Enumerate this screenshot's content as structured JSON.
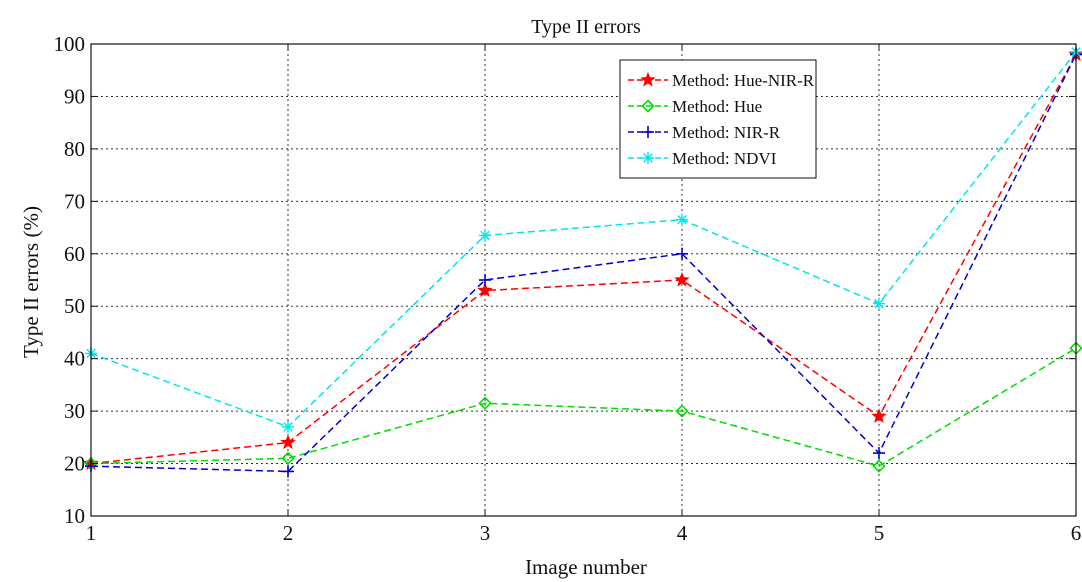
{
  "chart_data": {
    "type": "line",
    "title": "Type II errors",
    "xlabel": "Image number",
    "ylabel": "Type II errors (%)",
    "x": [
      1,
      2,
      3,
      4,
      5,
      6
    ],
    "xlim": [
      1,
      6
    ],
    "ylim": [
      10,
      100
    ],
    "xticks": [
      1,
      2,
      3,
      4,
      5,
      6
    ],
    "yticks": [
      10,
      20,
      30,
      40,
      50,
      60,
      70,
      80,
      90,
      100
    ],
    "grid": true,
    "legend_position": "top-right",
    "series": [
      {
        "name": "Method: Hue-NIR-R",
        "color": "#ff0000",
        "marker": "star",
        "line_style": "dashed",
        "values": [
          20,
          24,
          53,
          55,
          29,
          98
        ]
      },
      {
        "name": "Method: Hue",
        "color": "#00dd00",
        "marker": "diamond",
        "line_style": "dashed",
        "values": [
          20,
          21,
          31.5,
          30,
          19.5,
          42
        ]
      },
      {
        "name": "Method: NIR-R",
        "color": "#0000cc",
        "marker": "plus",
        "line_style": "dashed",
        "values": [
          19.5,
          18.5,
          55,
          60,
          22,
          98
        ]
      },
      {
        "name": "Method: NDVI",
        "color": "#00e5ee",
        "marker": "asterisk",
        "line_style": "dashed",
        "values": [
          41,
          27,
          63.5,
          66.5,
          50.5,
          98.5
        ]
      }
    ]
  }
}
